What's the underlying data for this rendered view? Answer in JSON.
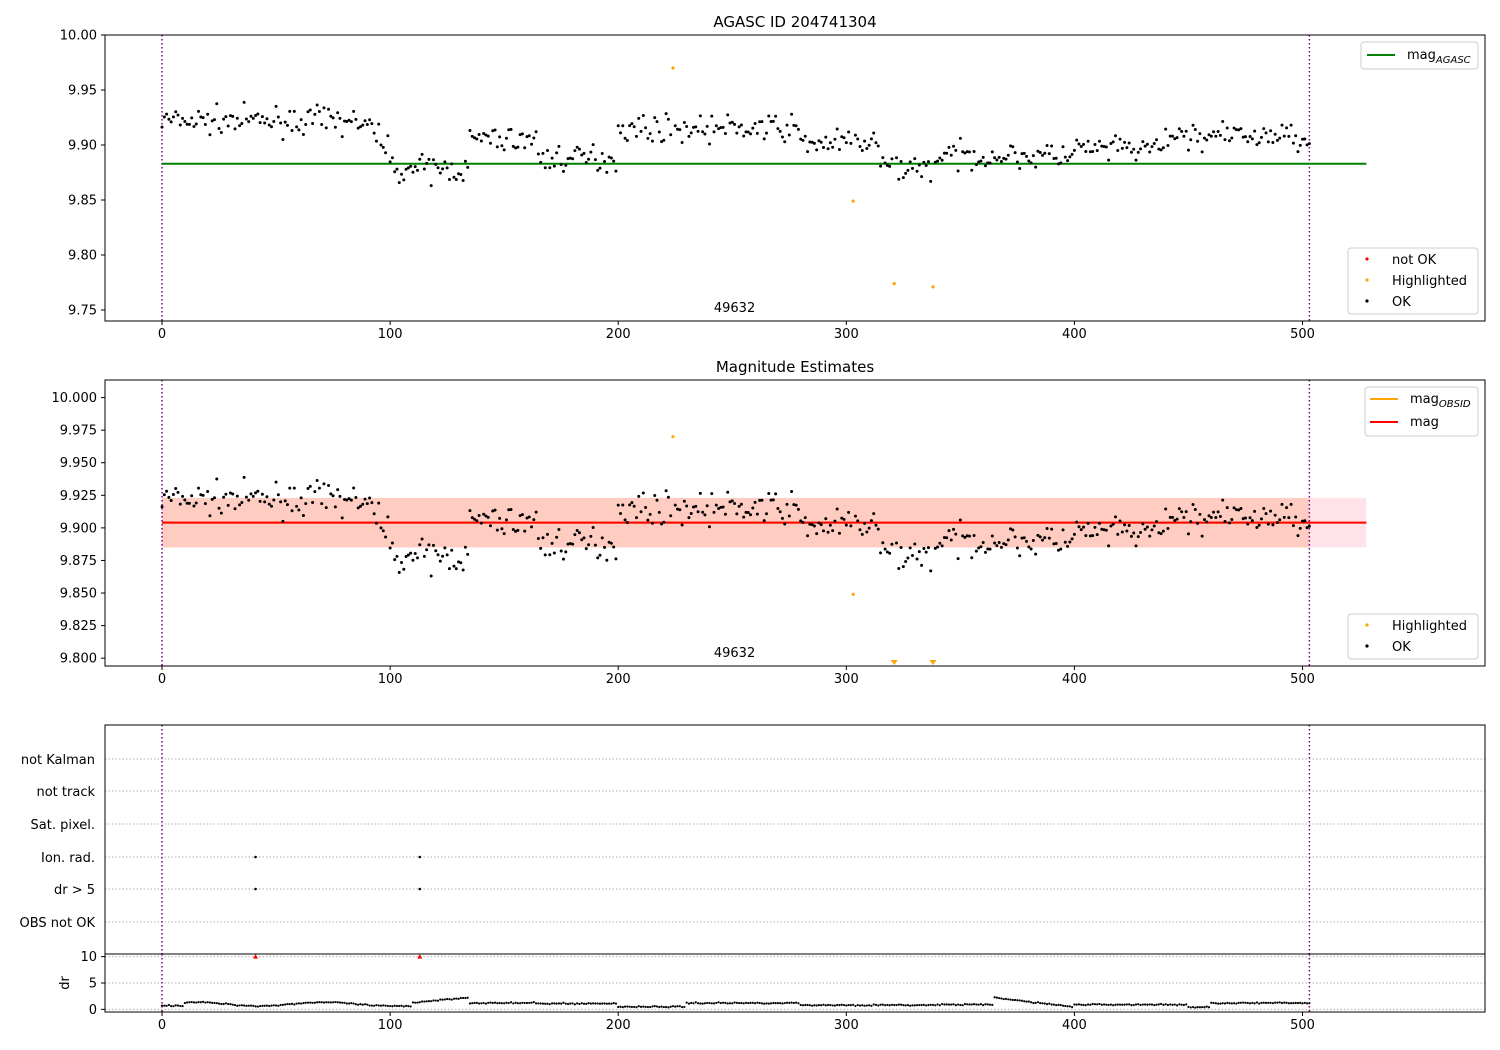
{
  "colors": {
    "agasc_line": "#008000",
    "obsid_line": "#ffa500",
    "mag_line": "#ff0000",
    "band_pink": "#ffc0cb",
    "band_salmon": "#ffa07a",
    "not_ok": "#ff0000",
    "highlighted": "#ffa500",
    "ok": "#000000",
    "obs_boundary": "#800080"
  },
  "chart_data": [
    {
      "type": "scatter",
      "title": "AGASC ID 204741304",
      "xlim": [
        -25,
        580
      ],
      "ylim": [
        9.74,
        10.0
      ],
      "xticks": [
        "0",
        "100",
        "200",
        "300",
        "400",
        "500"
      ],
      "xtick_values": [
        0,
        100,
        200,
        300,
        400,
        500
      ],
      "yticks": [
        "9.75",
        "9.80",
        "9.85",
        "9.90",
        "9.95",
        "10.00"
      ],
      "ytick_values": [
        9.75,
        9.8,
        9.85,
        9.9,
        9.95,
        10.0
      ],
      "obs_boundaries": [
        0,
        503
      ],
      "obsid_label": "49632",
      "obsid_label_x": 251,
      "mag_agasc": 9.883,
      "mag_agasc_xrange": [
        0,
        528
      ],
      "highlighted": [
        [
          224,
          9.97
        ],
        [
          303,
          9.849
        ],
        [
          321,
          9.774
        ],
        [
          338,
          9.771
        ]
      ],
      "legend_line": "mag",
      "legend_line_sub": "AGASC",
      "legend_points": [
        "not OK",
        "Highlighted",
        "OK"
      ]
    },
    {
      "type": "scatter",
      "title": "Magnitude Estimates",
      "xlim": [
        -25,
        580
      ],
      "ylim": [
        9.794,
        10.0135
      ],
      "xticks": [
        "0",
        "100",
        "200",
        "300",
        "400",
        "500"
      ],
      "xtick_values": [
        0,
        100,
        200,
        300,
        400,
        500
      ],
      "yticks": [
        "9.800",
        "9.825",
        "9.850",
        "9.875",
        "9.900",
        "9.925",
        "9.950",
        "9.975",
        "10.000"
      ],
      "ytick_values": [
        9.8,
        9.825,
        9.85,
        9.875,
        9.9,
        9.925,
        9.95,
        9.975,
        10.0
      ],
      "obs_boundaries": [
        0,
        503
      ],
      "obsid_label": "49632",
      "obsid_label_x": 251,
      "mag": 9.904,
      "mag_obsid": 9.904,
      "band": [
        9.885,
        9.923
      ],
      "band_xrange": [
        0,
        528
      ],
      "highlighted": [
        [
          224,
          9.97
        ],
        [
          303,
          9.849
        ]
      ],
      "highlighted_below": [
        321,
        338
      ],
      "legend_lines": [
        {
          "label": "mag",
          "sub": "OBSID"
        },
        {
          "label": "mag",
          "sub": ""
        }
      ],
      "legend_points": [
        "Highlighted",
        "OK"
      ]
    },
    {
      "type": "scatter",
      "title": "",
      "xlim": [
        -25,
        580
      ],
      "flag_labels": [
        "not Kalman",
        "not track",
        "Sat. pixel.",
        "Ion. rad.",
        "dr > 5",
        "OBS not OK"
      ],
      "flag_points": {
        "Ion. rad.": [
          41,
          113
        ],
        "dr > 5": [
          41,
          113
        ]
      },
      "obs_boundaries": [
        0,
        503
      ]
    },
    {
      "type": "scatter",
      "title": "",
      "xlim": [
        -25,
        580
      ],
      "ylim": [
        -0.5,
        10.5
      ],
      "ylabel": "dr",
      "xticks": [
        "0",
        "100",
        "200",
        "300",
        "400",
        "500"
      ],
      "xtick_values": [
        0,
        100,
        200,
        300,
        400,
        500
      ],
      "yticks": [
        "0",
        "5",
        "10"
      ],
      "ytick_values": [
        0,
        5,
        10
      ],
      "dr_clipped": [
        41,
        113
      ],
      "dr_clip_value": 10,
      "obs_boundaries": [
        0,
        503
      ]
    }
  ]
}
